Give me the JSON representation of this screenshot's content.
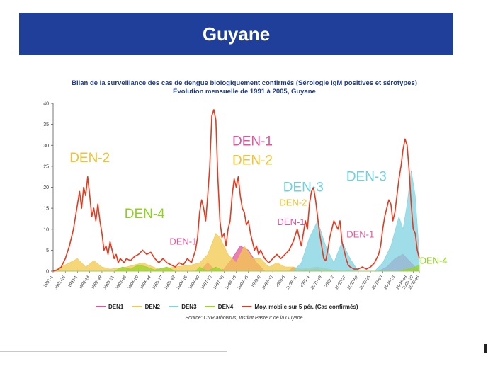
{
  "banner": {
    "title": "Guyane"
  },
  "chart_data": {
    "type": "line",
    "title": "Bilan de la surveillance des cas de dengue biologiquement confirmés (Sérologie IgM positives et sérotypes)",
    "subtitle": "Évolution mensuelle de 1991 à 2005, Guyane",
    "ylim": [
      0,
      40
    ],
    "yticks": [
      0,
      5,
      10,
      15,
      20,
      25,
      30,
      35,
      40
    ],
    "xlim": [
      0,
      180
    ],
    "xticks": [
      {
        "x": 0,
        "label": "1991-1"
      },
      {
        "x": 6,
        "label": "1991-25"
      },
      {
        "x": 12,
        "label": "1992-1"
      },
      {
        "x": 18,
        "label": "1992-24"
      },
      {
        "x": 24,
        "label": "1992-49"
      },
      {
        "x": 30,
        "label": "1993-21"
      },
      {
        "x": 36,
        "label": "1993-46"
      },
      {
        "x": 42,
        "label": "1994-19"
      },
      {
        "x": 48,
        "label": "1994-44"
      },
      {
        "x": 54,
        "label": "1995-17"
      },
      {
        "x": 60,
        "label": "1995-42"
      },
      {
        "x": 66,
        "label": "1996-15"
      },
      {
        "x": 72,
        "label": "1996-40"
      },
      {
        "x": 78,
        "label": "1997-13"
      },
      {
        "x": 84,
        "label": "1997-38"
      },
      {
        "x": 90,
        "label": "1998-10"
      },
      {
        "x": 96,
        "label": "1998-35"
      },
      {
        "x": 102,
        "label": "1999-8"
      },
      {
        "x": 108,
        "label": "1999-33"
      },
      {
        "x": 114,
        "label": "2000-6"
      },
      {
        "x": 120,
        "label": "2000-31"
      },
      {
        "x": 126,
        "label": "2001-4"
      },
      {
        "x": 132,
        "label": "2001-29"
      },
      {
        "x": 138,
        "label": "2002-2"
      },
      {
        "x": 144,
        "label": "2002-27"
      },
      {
        "x": 150,
        "label": "2002-52"
      },
      {
        "x": 156,
        "label": "2003-25"
      },
      {
        "x": 162,
        "label": "2003-50"
      },
      {
        "x": 168,
        "label": "2004-23"
      },
      {
        "x": 174,
        "label": "2004-48"
      },
      {
        "x": 177,
        "label": "2005-20"
      },
      {
        "x": 180,
        "label": "2005-45"
      }
    ],
    "legend_position": "bottom",
    "series": [
      {
        "name": "DEN1",
        "type": "area",
        "color": "#e0559b",
        "points": [
          [
            0,
            0
          ],
          [
            72,
            0
          ],
          [
            76,
            2
          ],
          [
            80,
            0
          ],
          [
            84,
            0.5
          ],
          [
            88,
            3
          ],
          [
            92,
            6
          ],
          [
            96,
            5
          ],
          [
            100,
            2
          ],
          [
            104,
            0
          ],
          [
            116,
            0
          ],
          [
            118,
            1
          ],
          [
            120,
            0
          ],
          [
            130,
            0.5
          ],
          [
            132,
            0
          ],
          [
            160,
            0
          ],
          [
            164,
            1
          ],
          [
            168,
            3
          ],
          [
            172,
            4
          ],
          [
            176,
            2
          ],
          [
            180,
            0
          ]
        ]
      },
      {
        "name": "DEN2",
        "type": "area",
        "color": "#f2c94c",
        "points": [
          [
            0,
            0
          ],
          [
            4,
            1
          ],
          [
            8,
            2
          ],
          [
            12,
            3
          ],
          [
            16,
            1
          ],
          [
            20,
            2.5
          ],
          [
            24,
            1
          ],
          [
            28,
            0.5
          ],
          [
            36,
            1
          ],
          [
            44,
            2
          ],
          [
            52,
            0.5
          ],
          [
            60,
            1
          ],
          [
            68,
            1.5
          ],
          [
            72,
            2
          ],
          [
            76,
            4
          ],
          [
            80,
            9
          ],
          [
            82,
            8
          ],
          [
            86,
            4
          ],
          [
            90,
            2
          ],
          [
            94,
            6
          ],
          [
            98,
            3
          ],
          [
            102,
            3
          ],
          [
            106,
            1
          ],
          [
            110,
            2
          ],
          [
            114,
            1
          ],
          [
            118,
            1
          ],
          [
            122,
            0.5
          ],
          [
            130,
            1
          ],
          [
            140,
            0
          ],
          [
            180,
            0
          ]
        ]
      },
      {
        "name": "DEN3",
        "type": "area",
        "color": "#7fd3e0",
        "points": [
          [
            0,
            0
          ],
          [
            118,
            0
          ],
          [
            122,
            2
          ],
          [
            126,
            8
          ],
          [
            130,
            12
          ],
          [
            134,
            6
          ],
          [
            138,
            2
          ],
          [
            142,
            7
          ],
          [
            146,
            3
          ],
          [
            150,
            0
          ],
          [
            158,
            0
          ],
          [
            162,
            2
          ],
          [
            166,
            6
          ],
          [
            170,
            13
          ],
          [
            172,
            10
          ],
          [
            174,
            16
          ],
          [
            176,
            24
          ],
          [
            178,
            18
          ],
          [
            180,
            4
          ]
        ]
      },
      {
        "name": "DEN4",
        "type": "area",
        "color": "#9bd329",
        "points": [
          [
            0,
            0
          ],
          [
            30,
            0
          ],
          [
            34,
            1
          ],
          [
            38,
            0.5
          ],
          [
            42,
            1.5
          ],
          [
            46,
            1
          ],
          [
            50,
            0.3
          ],
          [
            56,
            1
          ],
          [
            60,
            0
          ],
          [
            70,
            0
          ],
          [
            72,
            1
          ],
          [
            76,
            0
          ],
          [
            80,
            1
          ],
          [
            84,
            0
          ],
          [
            170,
            0
          ],
          [
            174,
            0.5
          ],
          [
            178,
            1
          ],
          [
            180,
            1.5
          ]
        ]
      },
      {
        "name": "Moy. mobile sur 5 pér. (Cas confirmés)",
        "type": "line",
        "color": "#e63a1e",
        "points": [
          [
            0,
            0
          ],
          [
            2,
            0.3
          ],
          [
            4,
            1
          ],
          [
            6,
            3
          ],
          [
            8,
            6
          ],
          [
            10,
            10
          ],
          [
            12,
            16
          ],
          [
            13,
            19
          ],
          [
            14,
            15
          ],
          [
            15,
            20
          ],
          [
            16,
            18
          ],
          [
            17,
            22.5
          ],
          [
            18,
            18
          ],
          [
            19,
            13
          ],
          [
            20,
            15
          ],
          [
            21,
            12
          ],
          [
            22,
            16
          ],
          [
            23,
            12
          ],
          [
            24,
            9
          ],
          [
            25,
            5
          ],
          [
            26,
            6
          ],
          [
            27,
            4
          ],
          [
            28,
            7
          ],
          [
            29,
            5
          ],
          [
            30,
            3
          ],
          [
            31,
            4
          ],
          [
            32,
            2
          ],
          [
            33,
            3
          ],
          [
            35,
            2
          ],
          [
            36,
            3
          ],
          [
            38,
            2.5
          ],
          [
            40,
            3.5
          ],
          [
            42,
            4
          ],
          [
            44,
            5
          ],
          [
            46,
            4
          ],
          [
            48,
            4.5
          ],
          [
            50,
            3
          ],
          [
            52,
            2
          ],
          [
            54,
            3
          ],
          [
            56,
            2
          ],
          [
            58,
            1.5
          ],
          [
            60,
            1
          ],
          [
            62,
            2
          ],
          [
            64,
            1.5
          ],
          [
            66,
            3
          ],
          [
            68,
            2
          ],
          [
            70,
            5
          ],
          [
            71,
            8
          ],
          [
            72,
            14
          ],
          [
            73,
            17
          ],
          [
            74,
            15
          ],
          [
            75,
            12
          ],
          [
            76,
            18
          ],
          [
            77,
            25
          ],
          [
            78,
            37
          ],
          [
            79,
            38.5
          ],
          [
            80,
            36
          ],
          [
            81,
            22
          ],
          [
            82,
            12
          ],
          [
            83,
            8
          ],
          [
            84,
            9
          ],
          [
            85,
            6
          ],
          [
            86,
            10
          ],
          [
            87,
            12
          ],
          [
            88,
            18
          ],
          [
            89,
            22
          ],
          [
            90,
            20
          ],
          [
            91,
            22.5
          ],
          [
            92,
            18
          ],
          [
            93,
            15
          ],
          [
            94,
            14
          ],
          [
            95,
            11
          ],
          [
            96,
            12
          ],
          [
            97,
            9
          ],
          [
            98,
            7
          ],
          [
            99,
            5
          ],
          [
            100,
            6
          ],
          [
            101,
            4
          ],
          [
            102,
            5
          ],
          [
            104,
            3
          ],
          [
            106,
            2
          ],
          [
            108,
            3
          ],
          [
            110,
            4
          ],
          [
            112,
            3
          ],
          [
            114,
            4
          ],
          [
            116,
            5
          ],
          [
            118,
            7
          ],
          [
            120,
            10
          ],
          [
            121,
            8
          ],
          [
            122,
            6
          ],
          [
            123,
            9
          ],
          [
            124,
            12
          ],
          [
            125,
            10
          ],
          [
            126,
            16
          ],
          [
            127,
            19
          ],
          [
            128,
            20
          ],
          [
            129,
            17
          ],
          [
            130,
            13
          ],
          [
            131,
            9
          ],
          [
            132,
            6
          ],
          [
            133,
            3
          ],
          [
            134,
            2.5
          ],
          [
            135,
            5
          ],
          [
            136,
            8
          ],
          [
            137,
            10
          ],
          [
            138,
            12
          ],
          [
            139,
            11
          ],
          [
            140,
            10
          ],
          [
            141,
            12
          ],
          [
            142,
            7
          ],
          [
            143,
            5
          ],
          [
            144,
            3
          ],
          [
            145,
            1.5
          ],
          [
            146,
            1
          ],
          [
            148,
            0.5
          ],
          [
            150,
            0.5
          ],
          [
            152,
            1
          ],
          [
            154,
            0.5
          ],
          [
            156,
            1
          ],
          [
            158,
            2
          ],
          [
            160,
            4
          ],
          [
            161,
            6
          ],
          [
            162,
            10
          ],
          [
            163,
            13
          ],
          [
            164,
            15
          ],
          [
            165,
            17
          ],
          [
            166,
            16
          ],
          [
            167,
            12
          ],
          [
            168,
            14
          ],
          [
            169,
            18
          ],
          [
            170,
            22
          ],
          [
            171,
            25
          ],
          [
            172,
            29
          ],
          [
            173,
            31.5
          ],
          [
            174,
            30
          ],
          [
            175,
            24
          ],
          [
            176,
            16
          ],
          [
            177,
            10
          ],
          [
            178,
            9
          ],
          [
            179,
            5
          ],
          [
            180,
            3
          ]
        ]
      }
    ],
    "annotations": [
      {
        "text": "DEN-2",
        "x": 18,
        "y": 26,
        "color": "#f2c230",
        "size": 19
      },
      {
        "text": "DEN-4",
        "x": 45,
        "y": 12.7,
        "color": "#8fd11e",
        "size": 19
      },
      {
        "text": "DEN-1",
        "x": 64,
        "y": 6.3,
        "color": "#e0559b",
        "size": 13
      },
      {
        "text": "DEN-1",
        "x": 98,
        "y": 30,
        "color": "#e0559b",
        "size": 19
      },
      {
        "text": "DEN-2",
        "x": 98,
        "y": 25.4,
        "color": "#f2c230",
        "size": 19
      },
      {
        "text": "DEN-3",
        "x": 123,
        "y": 19,
        "color": "#6fd0df",
        "size": 19
      },
      {
        "text": "DEN-2",
        "x": 118,
        "y": 15.6,
        "color": "#f2c230",
        "size": 13
      },
      {
        "text": "DEN-1",
        "x": 117,
        "y": 11,
        "color": "#e0559b",
        "size": 13
      },
      {
        "text": "DEN-3",
        "x": 154,
        "y": 21.5,
        "color": "#6fd0df",
        "size": 19
      },
      {
        "text": "DEN-1",
        "x": 151,
        "y": 8,
        "color": "#e0559b",
        "size": 13
      },
      {
        "text": "DEN-4",
        "x": 187,
        "y": 1.8,
        "color": "#8fd11e",
        "size": 13
      }
    ]
  },
  "legend": [
    {
      "label": "DEN1",
      "color": "#e0559b"
    },
    {
      "label": "DEN2",
      "color": "#f2c94c"
    },
    {
      "label": "DEN3",
      "color": "#7fd3e0"
    },
    {
      "label": "DEN4",
      "color": "#9bd329"
    },
    {
      "label": "Moy. mobile sur 5 pér. (Cas confirmés)",
      "color": "#e63a1e"
    }
  ],
  "source": "Source: CNR arbovirus, Institut Pasteur de la Guyane"
}
